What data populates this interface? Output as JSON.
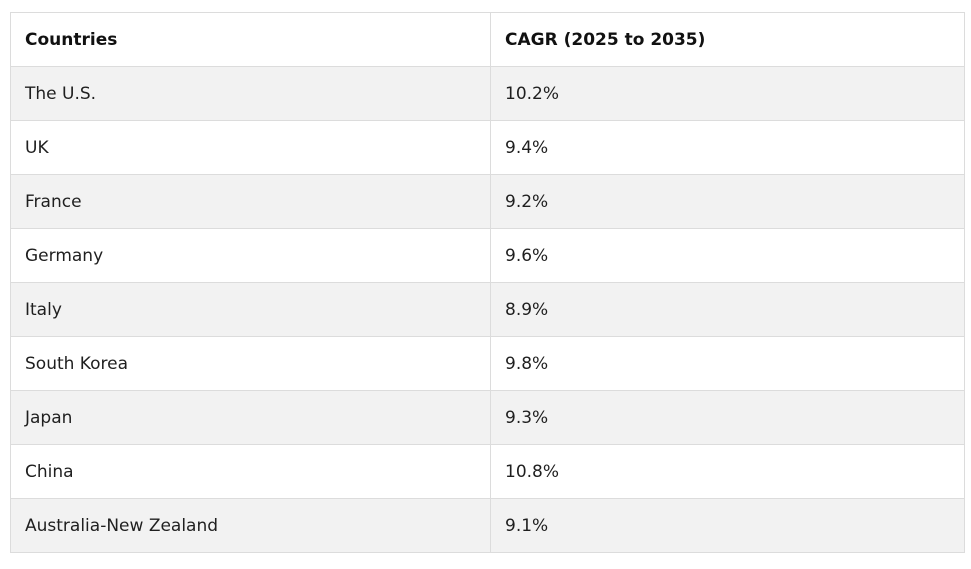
{
  "table": {
    "headers": [
      "Countries",
      "CAGR (2025 to 2035)"
    ],
    "rows": [
      [
        "The U.S.",
        "10.2%"
      ],
      [
        "UK",
        "9.4%"
      ],
      [
        "France",
        "9.2%"
      ],
      [
        "Germany",
        "9.6%"
      ],
      [
        "Italy",
        "8.9%"
      ],
      [
        "South Korea",
        "9.8%"
      ],
      [
        "Japan",
        "9.3%"
      ],
      [
        "China",
        "10.8%"
      ],
      [
        "Australia-New Zealand",
        "9.1%"
      ]
    ]
  }
}
